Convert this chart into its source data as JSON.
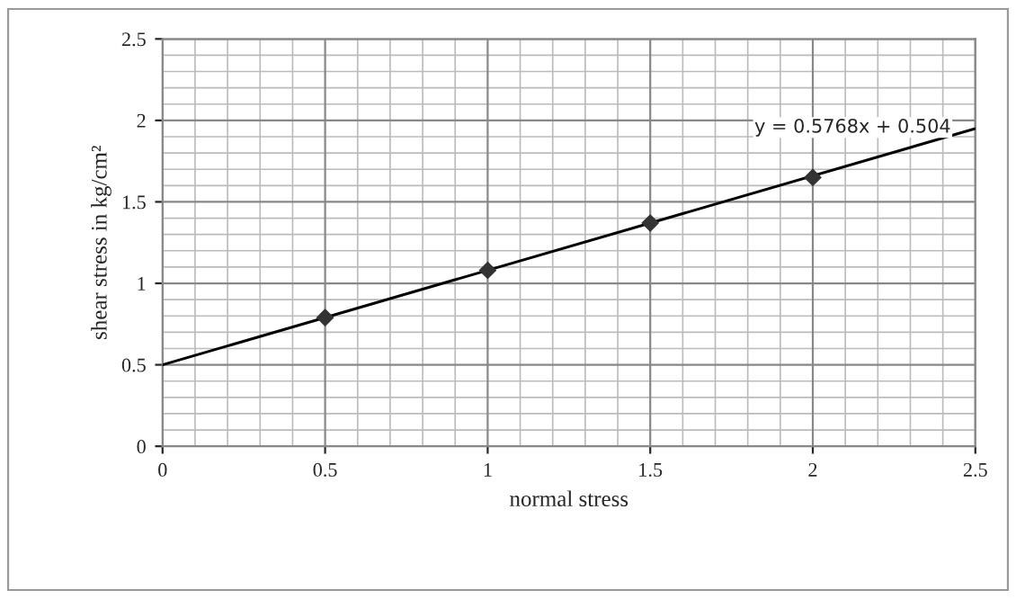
{
  "chart_data": {
    "type": "scatter",
    "xlabel": "normal stress",
    "ylabel": "shear stress in kg/cm²",
    "x": [
      0.5,
      1,
      1.5,
      2
    ],
    "series": [
      {
        "color": "#333333",
        "values": [
          0.79,
          1.08,
          1.37,
          1.65
        ],
        "marker": "diamond"
      },
      {
        "type": "line",
        "color": "#000000",
        "x": [
          0,
          2.5
        ],
        "values": [
          0.5,
          1.95
        ],
        "marker": "none"
      }
    ],
    "xlim": [
      0,
      2.5
    ],
    "ylim": [
      0,
      2.5
    ],
    "xticks": [
      0,
      0.5,
      1,
      1.5,
      2,
      2.5
    ],
    "yticks": [
      0,
      0.5,
      1,
      1.5,
      2,
      2.5
    ],
    "grid": true,
    "legend": false,
    "annotations": [
      "y = 0.5768x + 0.504"
    ]
  }
}
